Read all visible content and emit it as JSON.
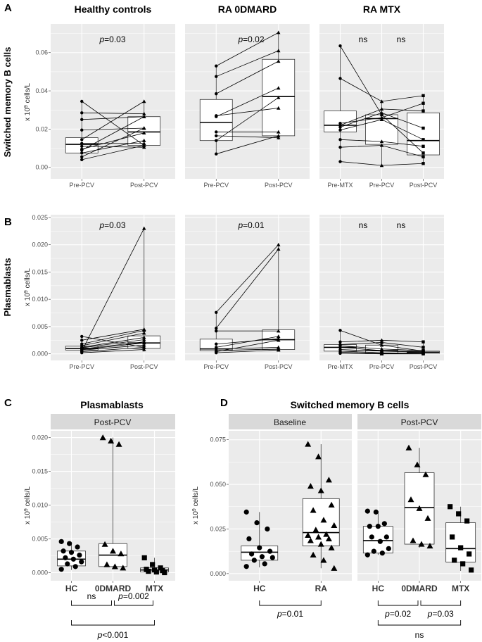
{
  "chart_data": [
    {
      "id": "A1",
      "type": "paired-boxplot",
      "panel_label": "A",
      "title": "Healthy controls",
      "ylabel": "Switched memory B cells",
      "yunit": "x 10^9 cells/L",
      "ylim": [
        -0.006,
        0.075
      ],
      "yticks": [
        "0.00",
        "0.02",
        "0.04",
        "0.06"
      ],
      "categories": [
        "Pre-PCV",
        "Post-PCV"
      ],
      "boxes": [
        {
          "q1": 0.0075,
          "median": 0.012,
          "q3": 0.0155,
          "lo": 0.0035,
          "hi": 0.0345
        },
        {
          "q1": 0.0115,
          "median": 0.0185,
          "q3": 0.0265,
          "lo": 0.0105,
          "hi": 0.035
        }
      ],
      "markers": [
        "dot",
        "triangle"
      ],
      "pairs": [
        [
          0.0345,
          0.0115
        ],
        [
          0.0285,
          0.028
        ],
        [
          0.025,
          0.0265
        ],
        [
          0.0195,
          0.0205
        ],
        [
          0.0145,
          0.0345
        ],
        [
          0.0125,
          0.0125
        ],
        [
          0.011,
          0.0105
        ],
        [
          0.0095,
          0.018
        ],
        [
          0.009,
          0.0265
        ],
        [
          0.0075,
          0.014
        ],
        [
          0.0055,
          0.0205
        ],
        [
          0.004,
          0.0115
        ]
      ],
      "annotations": [
        "p=0.03"
      ]
    },
    {
      "id": "A2",
      "type": "paired-boxplot",
      "title": "RA 0DMARD",
      "ylim": [
        -0.006,
        0.075
      ],
      "categories": [
        "Pre-PCV",
        "Post-PCV"
      ],
      "boxes": [
        {
          "q1": 0.014,
          "median": 0.0235,
          "q3": 0.0355,
          "lo": 0.007,
          "hi": 0.053
        },
        {
          "q1": 0.0165,
          "median": 0.037,
          "q3": 0.0565,
          "lo": 0.0145,
          "hi": 0.0705
        }
      ],
      "markers": [
        "dot",
        "triangle"
      ],
      "pairs": [
        [
          0.053,
          0.0705
        ],
        [
          0.0475,
          0.061
        ],
        [
          0.0385,
          0.0555
        ],
        [
          0.027,
          0.031
        ],
        [
          0.0265,
          0.0415
        ],
        [
          0.0185,
          0.0185
        ],
        [
          0.0165,
          0.0155
        ],
        [
          0.014,
          0.0365
        ],
        [
          0.007,
          0.0165
        ]
      ],
      "annotations": [
        "p=0.02"
      ]
    },
    {
      "id": "A3",
      "type": "paired-boxplot",
      "title": "RA MTX",
      "ylim": [
        -0.006,
        0.075
      ],
      "categories": [
        "Pre-MTX",
        "Pre-PCV",
        "Post-PCV"
      ],
      "boxes": [
        {
          "q1": 0.0185,
          "median": 0.022,
          "q3": 0.0295,
          "lo": 0.003,
          "hi": 0.064
        },
        {
          "q1": 0.012,
          "median": 0.0255,
          "q3": 0.0275,
          "lo": 0.001,
          "hi": 0.035
        },
        {
          "q1": 0.0065,
          "median": 0.014,
          "q3": 0.0285,
          "lo": 0.0015,
          "hi": 0.0375
        }
      ],
      "markers": [
        "dot",
        "triangle",
        "square"
      ],
      "pairs": [
        [
          0.0635,
          0.0275,
          0.0075
        ],
        [
          0.0465,
          0.0345,
          0.0375
        ],
        [
          0.023,
          0.026,
          0.0335
        ],
        [
          0.022,
          0.0305,
          0.0295
        ],
        [
          0.021,
          0.0285,
          0.0205
        ],
        [
          0.0195,
          0.025,
          0.0145
        ],
        [
          0.0145,
          0.0135,
          0.011
        ],
        [
          0.0105,
          0.0115,
          0.0055
        ],
        [
          0.003,
          0.001,
          0.002
        ]
      ],
      "annotations": [
        "ns",
        "ns"
      ]
    },
    {
      "id": "B1",
      "type": "paired-boxplot",
      "panel_label": "B",
      "ylabel": "Plasmablasts",
      "yunit": "x 10^9 cells/L",
      "ylim": [
        -0.0012,
        0.0255
      ],
      "yticks": [
        "0.000",
        "0.005",
        "0.010",
        "0.015",
        "0.020",
        "0.025"
      ],
      "categories": [
        "Pre-PCV",
        "Post-PCV"
      ],
      "boxes": [
        {
          "q1": 0.0007,
          "median": 0.001,
          "q3": 0.0014,
          "lo": 0.0002,
          "hi": 0.0032
        },
        {
          "q1": 0.001,
          "median": 0.002,
          "q3": 0.0033,
          "lo": 0.0004,
          "hi": 0.023
        }
      ],
      "markers": [
        "dot",
        "triangle"
      ],
      "pairs": [
        [
          0.0032,
          0.0012
        ],
        [
          0.0025,
          0.0045
        ],
        [
          0.0018,
          0.0043
        ],
        [
          0.0015,
          0.0038
        ],
        [
          0.0012,
          0.003
        ],
        [
          0.0011,
          0.0026
        ],
        [
          0.0009,
          0.0022
        ],
        [
          0.0008,
          0.002
        ],
        [
          0.0007,
          0.0016
        ],
        [
          0.0005,
          0.023
        ],
        [
          0.0004,
          0.0012
        ],
        [
          0.0002,
          0.0008
        ]
      ],
      "annotations": [
        "p=0.03"
      ]
    },
    {
      "id": "B2",
      "type": "paired-boxplot",
      "ylim": [
        -0.0012,
        0.0255
      ],
      "categories": [
        "Pre-PCV",
        "Post-PCV"
      ],
      "boxes": [
        {
          "q1": 0.0006,
          "median": 0.0009,
          "q3": 0.0027,
          "lo": 0.0002,
          "hi": 0.0076
        },
        {
          "q1": 0.0008,
          "median": 0.0026,
          "q3": 0.0044,
          "lo": 0.0006,
          "hi": 0.02
        }
      ],
      "markers": [
        "dot",
        "triangle"
      ],
      "pairs": [
        [
          0.0076,
          0.02
        ],
        [
          0.0047,
          0.0192
        ],
        [
          0.0042,
          0.0042
        ],
        [
          0.0018,
          0.0028
        ],
        [
          0.0012,
          0.0032
        ],
        [
          0.0009,
          0.0012
        ],
        [
          0.0006,
          0.0009
        ],
        [
          0.0004,
          0.0025
        ],
        [
          0.0002,
          0.0007
        ]
      ],
      "annotations": [
        "p=0.01"
      ]
    },
    {
      "id": "B3",
      "type": "paired-boxplot",
      "ylim": [
        -0.0012,
        0.0255
      ],
      "categories": [
        "Pre-MTX",
        "Pre-PCV",
        "Post-PCV"
      ],
      "boxes": [
        {
          "q1": 0.0005,
          "median": 0.0012,
          "q3": 0.0017,
          "lo": 0.0001,
          "hi": 0.0043
        },
        {
          "q1": 0.0001,
          "median": 0.0006,
          "q3": 0.0016,
          "lo": 0.0,
          "hi": 0.0025
        },
        {
          "q1": 0.0001,
          "median": 0.0003,
          "q3": 0.0005,
          "lo": 0.0,
          "hi": 0.0022
        }
      ],
      "markers": [
        "dot",
        "triangle",
        "square"
      ],
      "pairs": [
        [
          0.0043,
          0.0016,
          0.0005
        ],
        [
          0.0022,
          0.0025,
          0.0022
        ],
        [
          0.0017,
          0.0021,
          0.0012
        ],
        [
          0.0015,
          0.0009,
          0.0006
        ],
        [
          0.0012,
          0.0006,
          0.0004
        ],
        [
          0.0008,
          0.0005,
          0.0003
        ],
        [
          0.0005,
          0.0002,
          0.0001
        ],
        [
          0.0003,
          0.0001,
          0.0001
        ],
        [
          0.0001,
          0.0,
          0.0
        ]
      ],
      "annotations": [
        "ns",
        "ns"
      ]
    },
    {
      "id": "C",
      "type": "boxplot",
      "panel_label": "C",
      "title": "Plasmablasts",
      "strip": "Post-PCV",
      "yunit": "x 10^9 cells/L",
      "ylim": [
        -0.0012,
        0.021
      ],
      "yticks": [
        "0.000",
        "0.005",
        "0.010",
        "0.015",
        "0.020"
      ],
      "categories": [
        "HC",
        "0DMARD",
        "MTX"
      ],
      "boxes": [
        {
          "q1": 0.001,
          "median": 0.002,
          "q3": 0.0032,
          "lo": 0.0004,
          "hi": 0.0045
        },
        {
          "q1": 0.0009,
          "median": 0.0026,
          "q3": 0.0043,
          "lo": 0.0006,
          "hi": 0.02
        },
        {
          "q1": 0.0001,
          "median": 0.0004,
          "q3": 0.0007,
          "lo": 0.0,
          "hi": 0.0022
        }
      ],
      "markers": [
        "dot",
        "triangle",
        "square"
      ],
      "points": [
        [
          0.0046,
          0.0043,
          0.0038,
          0.0032,
          0.003,
          0.0026,
          0.0022,
          0.002,
          0.0016,
          0.0013,
          0.0009,
          0.0005
        ],
        [
          0.02,
          0.0195,
          0.019,
          0.0042,
          0.0032,
          0.0028,
          0.0012,
          0.0009,
          0.0007
        ],
        [
          0.0022,
          0.0012,
          0.0007,
          0.0005,
          0.0004,
          0.0003,
          0.0002,
          0.0001,
          0.0
        ]
      ],
      "brackets": [
        [
          "0DMARD",
          "MTX",
          "p=0.002"
        ],
        [
          "HC",
          "0DMARD",
          "ns"
        ],
        [
          "HC",
          "MTX",
          "p<0.001"
        ]
      ]
    },
    {
      "id": "D1",
      "type": "boxplot",
      "panel_label": "D",
      "title": "Switched memory B cells",
      "strip": "Baseline",
      "yunit": "x 10^9 cells/L",
      "ylim": [
        -0.004,
        0.08
      ],
      "yticks": [
        "0.000",
        "0.025",
        "0.050",
        "0.075"
      ],
      "categories": [
        "HC",
        "RA"
      ],
      "boxes": [
        {
          "q1": 0.0075,
          "median": 0.012,
          "q3": 0.0155,
          "lo": 0.0035,
          "hi": 0.0345
        },
        {
          "q1": 0.0155,
          "median": 0.023,
          "q3": 0.042,
          "lo": 0.003,
          "hi": 0.0725
        }
      ],
      "markers": [
        "dot",
        "triangle"
      ],
      "points": [
        [
          0.0345,
          0.0285,
          0.025,
          0.0195,
          0.0145,
          0.0125,
          0.011,
          0.0095,
          0.009,
          0.0075,
          0.0055,
          0.004
        ],
        [
          0.0725,
          0.0655,
          0.0525,
          0.049,
          0.0465,
          0.0385,
          0.0355,
          0.03,
          0.027,
          0.0245,
          0.022,
          0.0215,
          0.0205,
          0.0195,
          0.0185,
          0.0165,
          0.0145,
          0.0105,
          0.0075,
          0.003
        ]
      ],
      "brackets": [
        [
          "HC",
          "RA",
          "p=0.01"
        ]
      ]
    },
    {
      "id": "D2",
      "type": "boxplot",
      "strip": "Post-PCV",
      "ylim": [
        -0.004,
        0.08
      ],
      "categories": [
        "HC",
        "0DMARD",
        "MTX"
      ],
      "boxes": [
        {
          "q1": 0.0115,
          "median": 0.0185,
          "q3": 0.0265,
          "lo": 0.0105,
          "hi": 0.035
        },
        {
          "q1": 0.0165,
          "median": 0.037,
          "q3": 0.0565,
          "lo": 0.0145,
          "hi": 0.0705
        }
      ],
      "markers": [
        "dot",
        "triangle",
        "square"
      ],
      "boxes_extra": [
        {
          "q1": 0.0065,
          "median": 0.014,
          "q3": 0.0285,
          "lo": 0.0015,
          "hi": 0.0375
        }
      ],
      "points": [
        [
          0.035,
          0.0345,
          0.028,
          0.0265,
          0.0265,
          0.0205,
          0.0205,
          0.018,
          0.014,
          0.0125,
          0.0115,
          0.0105
        ],
        [
          0.0705,
          0.061,
          0.0555,
          0.0415,
          0.0365,
          0.031,
          0.0185,
          0.0165,
          0.0155
        ],
        [
          0.0375,
          0.0335,
          0.0295,
          0.0205,
          0.0145,
          0.011,
          0.0075,
          0.0055,
          0.002
        ]
      ],
      "brackets": [
        [
          "HC",
          "0DMARD",
          "p=0.02"
        ],
        [
          "0DMARD",
          "MTX",
          "p=0.03"
        ],
        [
          "HC",
          "MTX",
          "ns"
        ]
      ]
    }
  ]
}
